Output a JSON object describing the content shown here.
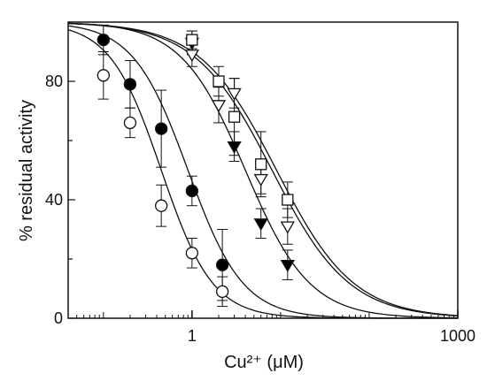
{
  "chart_data": {
    "type": "scatter",
    "title": "",
    "xlabel": "Cu²⁺ (μM)",
    "ylabel": "% residual activity",
    "x_scale": "log",
    "xlim": [
      0.04,
      1000
    ],
    "ylim": [
      0,
      100
    ],
    "x_tick_labels": [
      "1",
      "1000"
    ],
    "x_ticks": [
      1,
      1000
    ],
    "y_ticks": [
      0,
      40,
      80
    ],
    "y_tick_labels": [
      "0",
      "40",
      "80"
    ],
    "grid": false,
    "series": [
      {
        "marker": "open-circle",
        "fill": "#ffffff",
        "ic50": 0.45,
        "hill": 1.5,
        "points": [
          {
            "x": 0.1,
            "y": 82,
            "err": 8
          },
          {
            "x": 0.2,
            "y": 66,
            "err": 5
          },
          {
            "x": 0.45,
            "y": 38,
            "err": 7
          },
          {
            "x": 1.0,
            "y": 22,
            "err": 5
          },
          {
            "x": 2.2,
            "y": 9,
            "err": 5
          }
        ]
      },
      {
        "marker": "filled-circle",
        "fill": "#000000",
        "ic50": 0.9,
        "hill": 1.4,
        "points": [
          {
            "x": 0.1,
            "y": 94,
            "err": 5
          },
          {
            "x": 0.2,
            "y": 79,
            "err": 8
          },
          {
            "x": 0.45,
            "y": 64,
            "err": 13
          },
          {
            "x": 1.0,
            "y": 43,
            "err": 5
          },
          {
            "x": 2.2,
            "y": 18,
            "err": 12
          }
        ]
      },
      {
        "marker": "filled-triangle-down",
        "fill": "#000000",
        "ic50": 4.0,
        "hill": 1.2,
        "points": [
          {
            "x": 1.0,
            "y": 93,
            "err": 4
          },
          {
            "x": 3.0,
            "y": 58,
            "err": 5
          },
          {
            "x": 6.0,
            "y": 32,
            "err": 5
          },
          {
            "x": 12.0,
            "y": 18,
            "err": 5
          }
        ]
      },
      {
        "marker": "open-triangle-down",
        "fill": "#ffffff",
        "ic50": 8.0,
        "hill": 1.0,
        "points": [
          {
            "x": 1.0,
            "y": 89,
            "err": 4
          },
          {
            "x": 2.0,
            "y": 72,
            "err": 6
          },
          {
            "x": 3.0,
            "y": 76,
            "err": 5
          },
          {
            "x": 6.0,
            "y": 47,
            "err": 5
          },
          {
            "x": 12.0,
            "y": 31,
            "err": 6
          }
        ]
      },
      {
        "marker": "open-square",
        "fill": "#ffffff",
        "ic50": 9.0,
        "hill": 1.0,
        "points": [
          {
            "x": 1.0,
            "y": 94,
            "err": 3
          },
          {
            "x": 2.0,
            "y": 80,
            "err": 5
          },
          {
            "x": 3.0,
            "y": 68,
            "err": 13
          },
          {
            "x": 6.0,
            "y": 52,
            "err": 11
          },
          {
            "x": 12.0,
            "y": 40,
            "err": 6
          }
        ]
      }
    ]
  }
}
